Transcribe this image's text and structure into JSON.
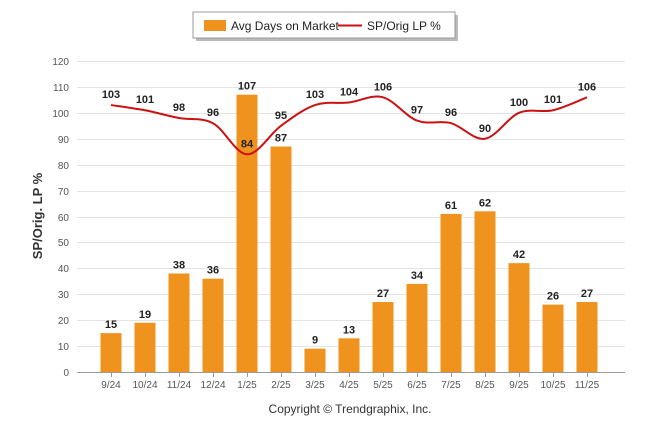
{
  "chart_data": {
    "type": "bar",
    "title": "",
    "xlabel": "",
    "ylabel": "SP/Orig. LP %",
    "ylim": [
      0,
      120
    ],
    "yticks": [
      "0",
      "10",
      "20",
      "30",
      "40",
      "50",
      "60",
      "70",
      "80",
      "90",
      "100",
      "110",
      "120"
    ],
    "categories": [
      "9/24",
      "10/24",
      "11/24",
      "12/24",
      "1/25",
      "2/25",
      "3/25",
      "4/25",
      "5/25",
      "6/25",
      "7/25",
      "8/25",
      "9/25",
      "10/25",
      "11/25"
    ],
    "series": [
      {
        "name": "Avg Days on Market",
        "type": "bar",
        "color": "#f0921e",
        "values": [
          15,
          19,
          38,
          36,
          107,
          87,
          9,
          13,
          27,
          34,
          61,
          62,
          42,
          26,
          27
        ]
      },
      {
        "name": "SP/Orig LP %",
        "type": "line",
        "color": "#cc1111",
        "values": [
          103,
          101,
          98,
          96,
          84,
          95,
          103,
          104,
          106,
          97,
          96,
          90,
          100,
          101,
          106
        ]
      }
    ],
    "legend": "top-center",
    "grid": true
  },
  "footer": {
    "copyright": "Copyright © Trendgraphix, Inc."
  }
}
